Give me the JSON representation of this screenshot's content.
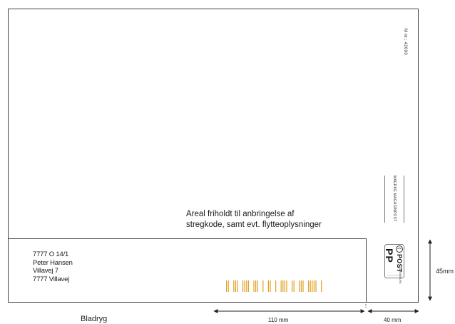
{
  "address": {
    "lines": [
      "7777 O 14/1",
      "Peter Hansen",
      "Villavej 7",
      "7777 Villavej"
    ]
  },
  "barcode_area": {
    "line1": "Areal friholdt til anbringelse af",
    "line2": "stregkode, samt evt. flytteoplysninger"
  },
  "right_column": {
    "ref_code": "M nr.: 42000",
    "marking_text": "MAERKE MAGASINPOST",
    "stamp": {
      "logo_text": "POST",
      "pp_text": "PP",
      "country_text": "DANMARK"
    }
  },
  "dimensions": {
    "width_main": "110 mm",
    "width_right": "40 mm",
    "height": "45mm",
    "spine_label": "Bladryg"
  },
  "colors": {
    "barcode": "#e0a020",
    "outline": "#444444"
  }
}
